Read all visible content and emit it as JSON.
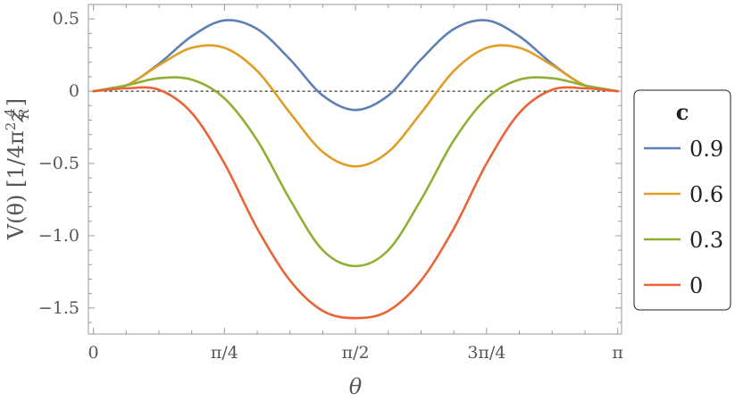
{
  "chart_data": {
    "type": "line",
    "xlabel": "θ",
    "ylabel": "V(θ) [1/4π²z_R⁴]",
    "ylabel_parts": {
      "main": "V(θ) [1/4π",
      "sup2": "2",
      "z": "z",
      "sub": "R",
      "sup4": "4",
      "close": "]"
    },
    "xlim": [
      -0.03,
      3.165
    ],
    "ylim": [
      -1.68,
      0.6
    ],
    "x_ticks": [
      {
        "value": 0,
        "label": "0"
      },
      {
        "value": 0.7854,
        "label": "π/4"
      },
      {
        "value": 1.5708,
        "label": "π/2"
      },
      {
        "value": 2.3562,
        "label": "3π/4"
      },
      {
        "value": 3.1416,
        "label": "π"
      }
    ],
    "y_ticks": [
      {
        "value": 0.5,
        "label": "0.5"
      },
      {
        "value": 0,
        "label": "0"
      },
      {
        "value": -0.5,
        "label": "−0.5"
      },
      {
        "value": -1.0,
        "label": "−1.0"
      },
      {
        "value": -1.5,
        "label": "−1.5"
      }
    ],
    "reference_line": {
      "y": 0,
      "style": "dashed"
    },
    "legend": {
      "title": "c",
      "placement": "right"
    },
    "series": [
      {
        "name": "0.9",
        "color": "#5e81b5",
        "x": [
          0,
          0.1963,
          0.3927,
          0.589,
          0.7854,
          0.9817,
          1.1781,
          1.3744,
          1.5708,
          1.7671,
          1.9635,
          2.1598,
          2.3562,
          2.5525,
          2.7489,
          2.9452,
          3.1416
        ],
        "y": [
          0,
          0.04,
          0.19,
          0.38,
          0.49,
          0.43,
          0.22,
          -0.03,
          -0.13,
          -0.03,
          0.22,
          0.43,
          0.49,
          0.38,
          0.19,
          0.04,
          0
        ]
      },
      {
        "name": "0.6",
        "color": "#e19c24",
        "x": [
          0,
          0.1963,
          0.3927,
          0.589,
          0.7854,
          0.9817,
          1.1781,
          1.3744,
          1.5708,
          1.7671,
          1.9635,
          2.1598,
          2.3562,
          2.5525,
          2.7489,
          2.9452,
          3.1416
        ],
        "y": [
          0,
          0.04,
          0.18,
          0.3,
          0.3,
          0.14,
          -0.15,
          -0.42,
          -0.52,
          -0.42,
          -0.15,
          0.14,
          0.3,
          0.3,
          0.18,
          0.04,
          0
        ]
      },
      {
        "name": "0.3",
        "color": "#8fb032",
        "x": [
          0,
          0.1963,
          0.3927,
          0.589,
          0.7854,
          0.9817,
          1.1781,
          1.3744,
          1.5708,
          1.7671,
          1.9635,
          2.1598,
          2.3562,
          2.5525,
          2.7489,
          2.9452,
          3.1416
        ],
        "y": [
          0,
          0.04,
          0.09,
          0.08,
          -0.05,
          -0.34,
          -0.75,
          -1.1,
          -1.21,
          -1.1,
          -0.75,
          -0.34,
          -0.05,
          0.08,
          0.09,
          0.04,
          0
        ]
      },
      {
        "name": "0",
        "color": "#eb6235",
        "x": [
          0,
          0.1963,
          0.3927,
          0.589,
          0.7854,
          0.9817,
          1.1781,
          1.3744,
          1.5708,
          1.7671,
          1.9635,
          2.1598,
          2.3562,
          2.5525,
          2.7489,
          2.9452,
          3.1416
        ],
        "y": [
          0,
          0.02,
          0.01,
          -0.15,
          -0.5,
          -0.95,
          -1.31,
          -1.52,
          -1.57,
          -1.52,
          -1.31,
          -0.95,
          -0.5,
          -0.15,
          0.01,
          0.02,
          0
        ]
      }
    ]
  }
}
